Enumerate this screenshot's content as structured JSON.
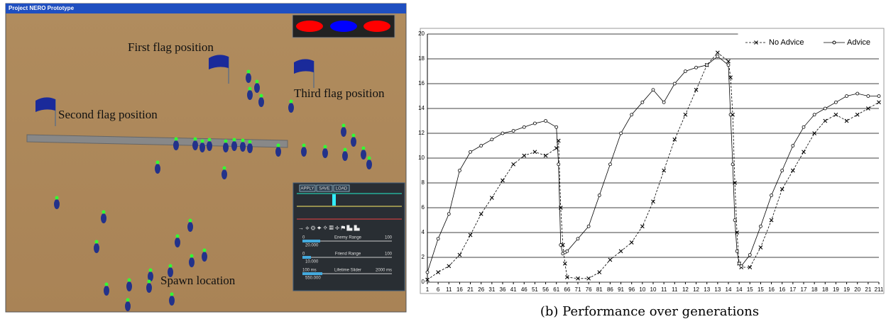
{
  "screenshot": {
    "window_title": "Project NERO Prototype",
    "annotations": [
      "First flag position",
      "Second flag position",
      "Third flag position",
      "Spawn location"
    ],
    "panel": {
      "buttons": [
        "APPLY",
        "SAVE",
        "LOAD"
      ],
      "sliders": [
        {
          "name": "Enemy Range",
          "min": "0",
          "max": "100",
          "value": "20.000"
        },
        {
          "name": "Friend Range",
          "min": "0",
          "max": "100",
          "value": "10.000"
        },
        {
          "name": "Lifetime Slider",
          "min": "100 ms",
          "max": "2000 ms",
          "value": "550.000"
        }
      ]
    }
  },
  "chart_data": {
    "type": "line",
    "caption": "(b) Performance over generations",
    "x": [
      1,
      6,
      11,
      16,
      21,
      26,
      31,
      36,
      41,
      46,
      51,
      56,
      61,
      62,
      63,
      64,
      65,
      66,
      71,
      76,
      81,
      86,
      91,
      96,
      101,
      106,
      111,
      116,
      121,
      126,
      131,
      136,
      141,
      142,
      143,
      144,
      145,
      146,
      147,
      151,
      156,
      161,
      166,
      171,
      176,
      181,
      186,
      191,
      196,
      201,
      206,
      211
    ],
    "series": [
      {
        "name": "No Advice",
        "color": "#000000",
        "marker": "x",
        "dashed": true,
        "values": [
          0.2,
          0.8,
          1.3,
          2.2,
          3.8,
          5.5,
          6.8,
          8.2,
          9.5,
          10.2,
          10.5,
          10.2,
          10.8,
          11.4,
          6,
          3,
          1.5,
          0.4,
          0.3,
          0.3,
          0.8,
          1.8,
          2.5,
          3.2,
          4.5,
          6.5,
          9,
          11.5,
          13.5,
          15.5,
          17.5,
          18.5,
          17.8,
          16.5,
          13.5,
          8,
          4,
          1.5,
          1.2,
          1.2,
          2.8,
          5,
          7.5,
          9,
          10.5,
          12,
          13,
          13.5,
          13,
          13.5,
          14,
          14.5
        ]
      },
      {
        "name": "Advice",
        "color": "#000000",
        "marker": "o",
        "dashed": false,
        "values": [
          0.8,
          3.5,
          5.5,
          9,
          10.5,
          11,
          11.5,
          12,
          12.2,
          12.5,
          12.8,
          13,
          12.5,
          9.5,
          3,
          2.3,
          2.4,
          2.5,
          3.5,
          4.5,
          7,
          9.5,
          12,
          13.5,
          14.5,
          15.5,
          14.5,
          16,
          17,
          17.3,
          17.5,
          18.2,
          17.5,
          13.5,
          9.5,
          5,
          2.5,
          1.5,
          1.3,
          2.2,
          4.5,
          7,
          9,
          11,
          12.5,
          13.5,
          14,
          14.5,
          15,
          15.2,
          15,
          15
        ]
      }
    ],
    "xlim": [
      1,
      211
    ],
    "xticks": [
      1,
      6,
      11,
      16,
      21,
      26,
      31,
      36,
      41,
      46,
      51,
      56,
      61,
      66,
      71,
      76,
      81,
      86,
      91,
      96,
      {
        "value": 101,
        "label": "10"
      },
      {
        "value": 106,
        "label": "10"
      },
      {
        "value": 111,
        "label": "11"
      },
      {
        "value": 116,
        "label": "11"
      },
      {
        "value": 121,
        "label": "12"
      },
      {
        "value": 126,
        "label": "12"
      },
      {
        "value": 131,
        "label": "13"
      },
      {
        "value": 136,
        "label": "13"
      },
      {
        "value": 141,
        "label": "14"
      },
      {
        "value": 146,
        "label": "14"
      },
      {
        "value": 151,
        "label": "15"
      },
      {
        "value": 156,
        "label": "15"
      },
      {
        "value": 161,
        "label": "16"
      },
      {
        "value": 166,
        "label": "16"
      },
      {
        "value": 171,
        "label": "17"
      },
      {
        "value": 176,
        "label": "17"
      },
      {
        "value": 181,
        "label": "18"
      },
      {
        "value": 186,
        "label": "18"
      },
      {
        "value": 191,
        "label": "19"
      },
      {
        "value": 196,
        "label": "19"
      },
      {
        "value": 201,
        "label": "20"
      },
      {
        "value": 206,
        "label": "21"
      },
      211
    ],
    "ylim": [
      0,
      20
    ],
    "yticks": [
      0,
      2,
      4,
      6,
      8,
      10,
      12,
      14,
      16,
      18,
      20
    ],
    "grid": true,
    "legend": "top-right"
  }
}
